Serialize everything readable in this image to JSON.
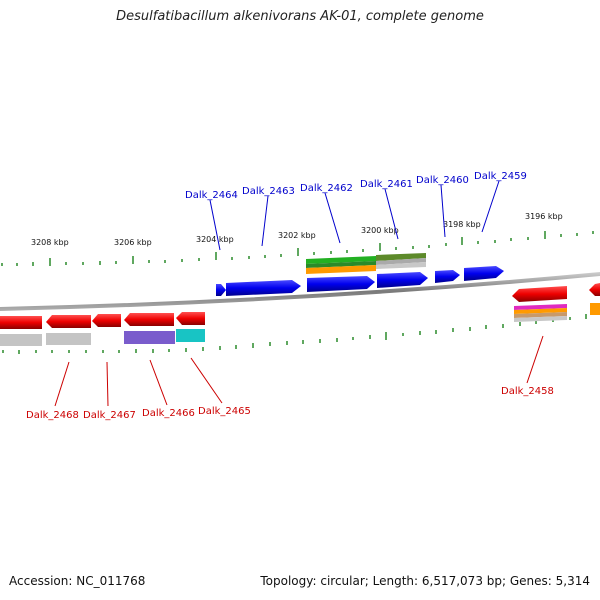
{
  "title": "Desulfatibacillum alkenivorans AK-01, complete genome",
  "footer": {
    "accession": "Accession: NC_011768",
    "summary": "Topology: circular; Length: 6,517,073 bp; Genes: 5,314"
  },
  "ruler_labels": [
    "3208 kbp",
    "3206 kbp",
    "3204 kbp",
    "3202 kbp",
    "3200 kbp",
    "3198 kbp",
    "3196 kbp"
  ],
  "genes_top": [
    "Dalk_2464",
    "Dalk_2463",
    "Dalk_2462",
    "Dalk_2461",
    "Dalk_2460",
    "Dalk_2459"
  ],
  "genes_bottom": [
    "Dalk_2468",
    "Dalk_2467",
    "Dalk_2466",
    "Dalk_2465",
    "Dalk_2458"
  ],
  "colors": {
    "forward_gene": "#0000ee",
    "reverse_gene": "#ee0000",
    "top_label": "#0000cc",
    "bottom_label": "#cc0000",
    "tick": "#228b22",
    "backbone": "#808080"
  }
}
